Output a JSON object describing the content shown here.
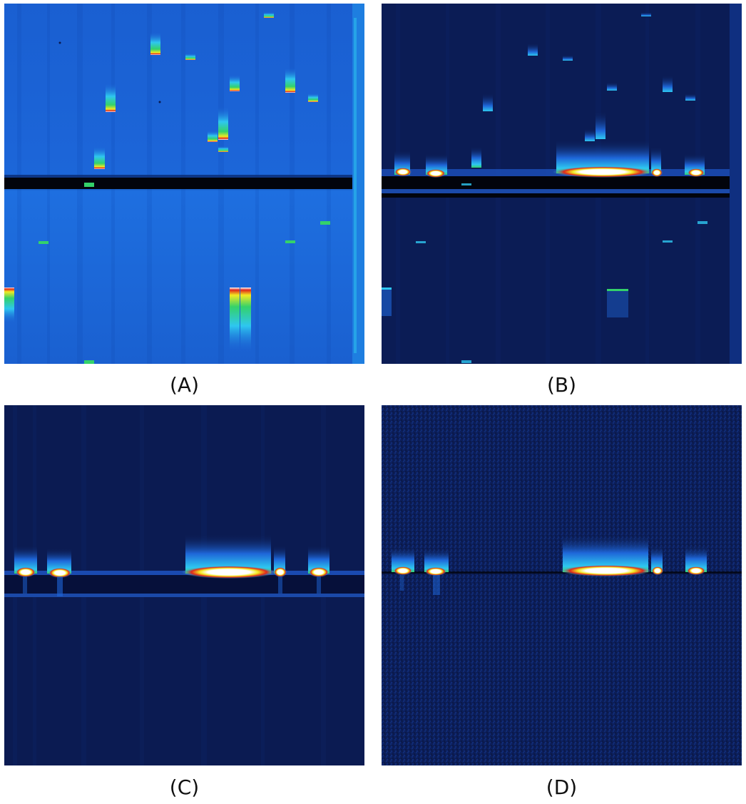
{
  "panels": [
    {
      "id": "A",
      "caption": "(A)"
    },
    {
      "id": "B",
      "caption": "(B)"
    },
    {
      "id": "C",
      "caption": "(C)"
    },
    {
      "id": "D",
      "caption": "(D)"
    }
  ],
  "colormap": "jet",
  "colors": {
    "background_bright_blue": "#1e66d8",
    "background_dark_navy": "#0a1a4e",
    "black_band": "#02040c",
    "hot_white": "#ffffff",
    "hot_red": "#e0261a",
    "hot_yellow": "#f2ea22",
    "hot_green": "#34d26a",
    "hot_cyan": "#2ec7f0"
  }
}
